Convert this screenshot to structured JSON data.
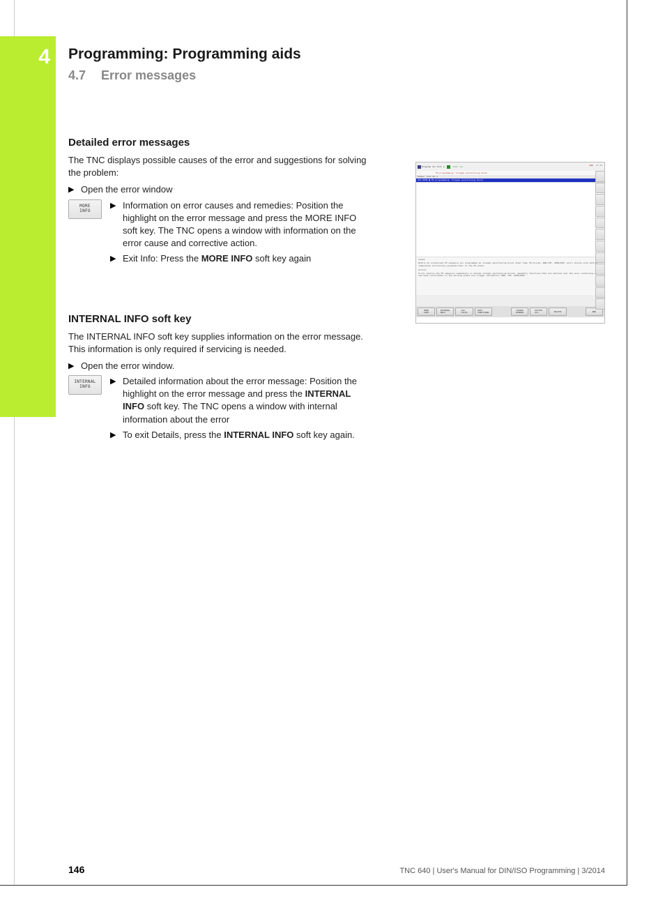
{
  "chapter": {
    "number": "4",
    "title": "Programming: Programming aids"
  },
  "section": {
    "number": "4.7",
    "title": "Error messages"
  },
  "s1": {
    "heading": "Detailed error messages",
    "intro": "The TNC displays possible causes of the error and suggestions for solving the problem:",
    "open": "Open the error window",
    "softkey": {
      "l1": "MORE",
      "l2": "INFO"
    },
    "b1": "Information on error causes and remedies: Position the highlight on the error message and press the MORE INFO soft key. The TNC opens a window with information on the error cause and corrective action.",
    "b2a": "Exit Info: Press the ",
    "b2b": "MORE INFO",
    "b2c": " soft key again"
  },
  "s2": {
    "heading_a": "INTERNAL INFO",
    "heading_b": " soft key",
    "intro": "The INTERNAL INFO soft key supplies information on the error message. This information is only required if servicing is needed.",
    "open": "Open the error window.",
    "softkey": {
      "l1": "INTERNAL",
      "l2": "INFO"
    },
    "b1a": "Detailed information about the error message: Position the highlight on the error message and press the ",
    "b1b": "INTERNAL INFO",
    "b1c": " soft key. The TNC opens a window with internal information about the error",
    "b2a": "To exit Details, press the ",
    "b2b": "INTERNAL INFO",
    "b2c": " soft key again."
  },
  "screenshot": {
    "title_left": "Program run full s.",
    "title_right": "Test run",
    "subbar": "FK programming: Illegal positioning block",
    "dnr": "DNR",
    "time": "07:38",
    "header2": "Number  Text No.1",
    "bluebar": "421-0009  ● FK programming: Illegal positioning block",
    "cause_lbl": "Cause:",
    "cause_txt": "Within an unresolved FK sequence you programmed an illegal positioning block other than FK blocks, RND/CHF, APPR/DEP, and L blocks with motion components exclusively perpendicular to the FK plane.",
    "action_lbl": "Action:",
    "action_txt": "First resolve the FK sequence completely or delete illegal positioning blocks. Geometry functions that are defined over the axis containing keys and have coordinates in the working plane are illegal (exception: RND, CHF, APPR/DEP).",
    "softkeys": [
      "MORE\nINFO",
      "INTERNAL\nINFO",
      "LOG\nFILES",
      "HEPT\nFUNCTIONS",
      "",
      "CHANGE\nWINDOW",
      "DELETE\nALL",
      "DELETE",
      "",
      "END"
    ]
  },
  "footer": {
    "page": "146",
    "right": "TNC 640 | User's Manual for DIN/ISO Programming | 3/2014"
  }
}
